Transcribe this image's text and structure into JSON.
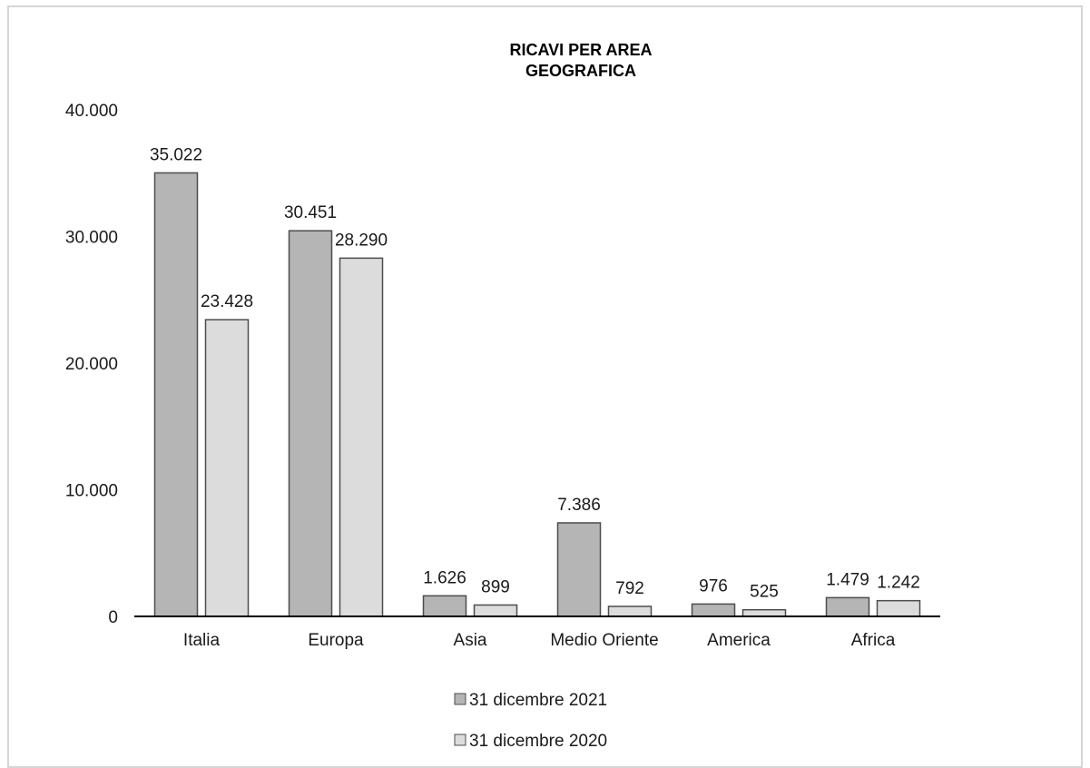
{
  "chart_data": {
    "type": "bar",
    "title_lines": [
      "RICAVI PER AREA",
      "GEOGRAFICA"
    ],
    "categories": [
      "Italia",
      "Europa",
      "Asia",
      "Medio Oriente",
      "America",
      "Africa"
    ],
    "series": [
      {
        "name": "31 dicembre 2021",
        "values": [
          35022,
          30451,
          1626,
          7386,
          976,
          1479
        ],
        "labels": [
          "35.022",
          "30.451",
          "1.626",
          "7.386",
          "976",
          "1.479"
        ],
        "color": "#b5b5b5"
      },
      {
        "name": "31 dicembre 2020",
        "values": [
          23428,
          28290,
          899,
          792,
          525,
          1242
        ],
        "labels": [
          "23.428",
          "28.290",
          "899",
          "792",
          "525",
          "1.242"
        ],
        "color": "#dcdcdc"
      }
    ],
    "ylim": [
      0,
      40000
    ],
    "yticks": [
      0,
      10000,
      20000,
      30000,
      40000
    ],
    "ytick_labels": [
      "0",
      "10.000",
      "20.000",
      "30.000",
      "40.000"
    ],
    "grid": false,
    "legend_position": "bottom"
  }
}
